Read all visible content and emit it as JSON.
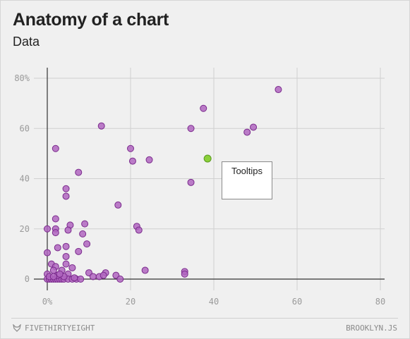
{
  "header": {
    "title": "Anatomy of a chart",
    "subtitle": "Data"
  },
  "tooltip": {
    "label": "Tooltips"
  },
  "footer": {
    "left_brand": "FIVETHIRTYEIGHT",
    "right_brand": "BROOKLYN.JS",
    "brand_icon": "fox-icon"
  },
  "colors": {
    "point_fill": "#b066c0",
    "point_stroke": "#7a2a8c",
    "highlight_fill": "#8bd03a",
    "highlight_stroke": "#5a9a20",
    "grid": "#d0d0d0",
    "axis": "#333333"
  },
  "chart_data": {
    "type": "scatter",
    "title": "Anatomy of a chart",
    "subtitle": "Data",
    "xlim": [
      0,
      80
    ],
    "ylim": [
      0,
      80
    ],
    "x_ticks": [
      0,
      20,
      40,
      60,
      80
    ],
    "y_ticks": [
      0,
      20,
      40,
      60,
      80
    ],
    "x_tick_labels": [
      "0%",
      "20",
      "40",
      "60",
      "80"
    ],
    "y_tick_labels": [
      "0",
      "20",
      "40",
      "60",
      "80%"
    ],
    "grid": true,
    "highlighted_point": {
      "x": 38.5,
      "y": 48
    },
    "points": [
      {
        "x": 55.5,
        "y": 75.5
      },
      {
        "x": 37.5,
        "y": 68
      },
      {
        "x": 49.5,
        "y": 60.5
      },
      {
        "x": 48,
        "y": 58.5
      },
      {
        "x": 34.5,
        "y": 60
      },
      {
        "x": 13,
        "y": 61
      },
      {
        "x": 2,
        "y": 52
      },
      {
        "x": 20,
        "y": 52
      },
      {
        "x": 24.5,
        "y": 47.5
      },
      {
        "x": 20.5,
        "y": 47
      },
      {
        "x": 7.5,
        "y": 42.5
      },
      {
        "x": 34.5,
        "y": 38.5
      },
      {
        "x": 4.5,
        "y": 36
      },
      {
        "x": 4.5,
        "y": 33
      },
      {
        "x": 17,
        "y": 29.5
      },
      {
        "x": 2,
        "y": 24
      },
      {
        "x": 9,
        "y": 22
      },
      {
        "x": 0,
        "y": 20
      },
      {
        "x": 2,
        "y": 20
      },
      {
        "x": 5.5,
        "y": 21.5
      },
      {
        "x": 21.5,
        "y": 21
      },
      {
        "x": 22,
        "y": 19.5
      },
      {
        "x": 2,
        "y": 18.5
      },
      {
        "x": 5,
        "y": 19.5
      },
      {
        "x": 8.5,
        "y": 18
      },
      {
        "x": 9.5,
        "y": 14
      },
      {
        "x": 2.5,
        "y": 12.5
      },
      {
        "x": 4.5,
        "y": 13
      },
      {
        "x": 0,
        "y": 10.5
      },
      {
        "x": 7.5,
        "y": 11
      },
      {
        "x": 4.5,
        "y": 9
      },
      {
        "x": 1,
        "y": 6
      },
      {
        "x": 4.5,
        "y": 6
      },
      {
        "x": 2,
        "y": 5
      },
      {
        "x": 6,
        "y": 4.5
      },
      {
        "x": 1.5,
        "y": 3.5
      },
      {
        "x": 3.5,
        "y": 3.5
      },
      {
        "x": 0,
        "y": 2
      },
      {
        "x": 5,
        "y": 2
      },
      {
        "x": 10,
        "y": 2.5
      },
      {
        "x": 14,
        "y": 2.5
      },
      {
        "x": 23.5,
        "y": 3.5
      },
      {
        "x": 33,
        "y": 3
      },
      {
        "x": 33,
        "y": 2
      },
      {
        "x": 16.5,
        "y": 1.5
      },
      {
        "x": 11,
        "y": 1
      },
      {
        "x": 12.5,
        "y": 1
      },
      {
        "x": 13.5,
        "y": 1.5
      },
      {
        "x": 17.5,
        "y": 0
      },
      {
        "x": 0,
        "y": 0
      },
      {
        "x": 0.5,
        "y": 0
      },
      {
        "x": 1,
        "y": 0
      },
      {
        "x": 1.5,
        "y": 0
      },
      {
        "x": 2,
        "y": 0
      },
      {
        "x": 2.5,
        "y": 0
      },
      {
        "x": 3,
        "y": 0
      },
      {
        "x": 3.5,
        "y": 0
      },
      {
        "x": 4,
        "y": 0
      },
      {
        "x": 5,
        "y": 0
      },
      {
        "x": 6,
        "y": 0
      },
      {
        "x": 7,
        "y": 0
      },
      {
        "x": 0.5,
        "y": 1
      },
      {
        "x": 2.5,
        "y": 1.5
      },
      {
        "x": 4,
        "y": 1
      },
      {
        "x": 6.5,
        "y": 0.5
      },
      {
        "x": 3,
        "y": 2
      },
      {
        "x": 1.5,
        "y": 1
      },
      {
        "x": 8,
        "y": 0
      }
    ]
  }
}
